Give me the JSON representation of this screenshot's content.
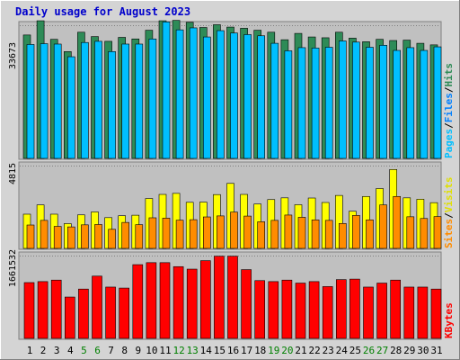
{
  "title": "Daily usage for August 2023",
  "chart_data": [
    {
      "type": "bar",
      "panel": "top",
      "ymax_label": "33673",
      "ylim": [
        0,
        33673
      ],
      "series": [
        {
          "name": "Pages",
          "color": "#2e8b57",
          "values": [
            31200,
            34800,
            30100,
            27000,
            31900,
            30800,
            29600,
            30600,
            30200,
            32400,
            34800,
            34900,
            34400,
            33100,
            33800,
            33200,
            32900,
            32400,
            31900,
            30000,
            31600,
            30700,
            30500,
            31900,
            30400,
            29500,
            30100,
            29800,
            29900,
            29100,
            28700
          ]
        },
        {
          "name": "Files",
          "color": "#00bfff",
          "values": [
            28800,
            29000,
            28900,
            25700,
            29300,
            29600,
            27000,
            28900,
            28900,
            30200,
            34500,
            32500,
            33000,
            30700,
            32300,
            31700,
            31300,
            31000,
            29100,
            27200,
            28000,
            27900,
            28100,
            29700,
            29400,
            28100,
            28600,
            27300,
            28000,
            27300,
            28200
          ]
        },
        {
          "name": "Hits",
          "color": "#00ffff",
          "values": []
        }
      ]
    },
    {
      "type": "bar",
      "panel": "middle",
      "ymax_label": "4815",
      "ylim": [
        0,
        4815
      ],
      "series": [
        {
          "name": "Visits",
          "color": "#ffff00",
          "values": [
            1990,
            2530,
            1990,
            1440,
            1950,
            2120,
            1790,
            1900,
            1930,
            2900,
            3140,
            3200,
            2680,
            2690,
            3130,
            3780,
            3140,
            2580,
            2840,
            2940,
            2540,
            2930,
            2670,
            3080,
            2160,
            3020,
            3480,
            4590,
            2940,
            2860,
            2660
          ]
        },
        {
          "name": "Sites",
          "color": "#ff8c00",
          "values": [
            1360,
            1630,
            1280,
            1250,
            1370,
            1390,
            1110,
            1510,
            1380,
            1780,
            1760,
            1640,
            1670,
            1830,
            1890,
            2110,
            1880,
            1550,
            1630,
            1940,
            1810,
            1660,
            1630,
            1450,
            1920,
            1660,
            2530,
            3020,
            1840,
            1740,
            1850
          ]
        }
      ]
    },
    {
      "type": "bar",
      "panel": "bottom",
      "ymax_label": "1661532",
      "ylim": [
        0,
        1661532
      ],
      "series": [
        {
          "name": "KBytes",
          "color": "#ff0000",
          "values": [
            1120000,
            1140000,
            1170000,
            830000,
            990000,
            1250000,
            1030000,
            1010000,
            1480000,
            1520000,
            1520000,
            1440000,
            1390000,
            1560000,
            1650000,
            1650000,
            1380000,
            1160000,
            1140000,
            1170000,
            1110000,
            1140000,
            1040000,
            1180000,
            1190000,
            1030000,
            1110000,
            1170000,
            1030000,
            1030000,
            990000
          ]
        }
      ]
    }
  ],
  "days": [
    "1",
    "2",
    "3",
    "4",
    "5",
    "6",
    "7",
    "8",
    "9",
    "10",
    "11",
    "12",
    "13",
    "14",
    "15",
    "16",
    "17",
    "18",
    "19",
    "20",
    "21",
    "22",
    "23",
    "24",
    "25",
    "26",
    "27",
    "28",
    "29",
    "30",
    "31"
  ],
  "weekend_days": [
    5,
    6,
    12,
    13,
    19,
    20,
    26,
    27
  ],
  "legend_top": [
    "Pages",
    "/",
    "Files",
    "/",
    "Hits"
  ],
  "legend_middle": [
    "Sites",
    "/",
    "Visits"
  ],
  "legend_bottom": [
    "KBytes"
  ],
  "colors": {
    "weekend_label": "#008000",
    "weekday_label": "#000000",
    "title": "#0000cc"
  }
}
